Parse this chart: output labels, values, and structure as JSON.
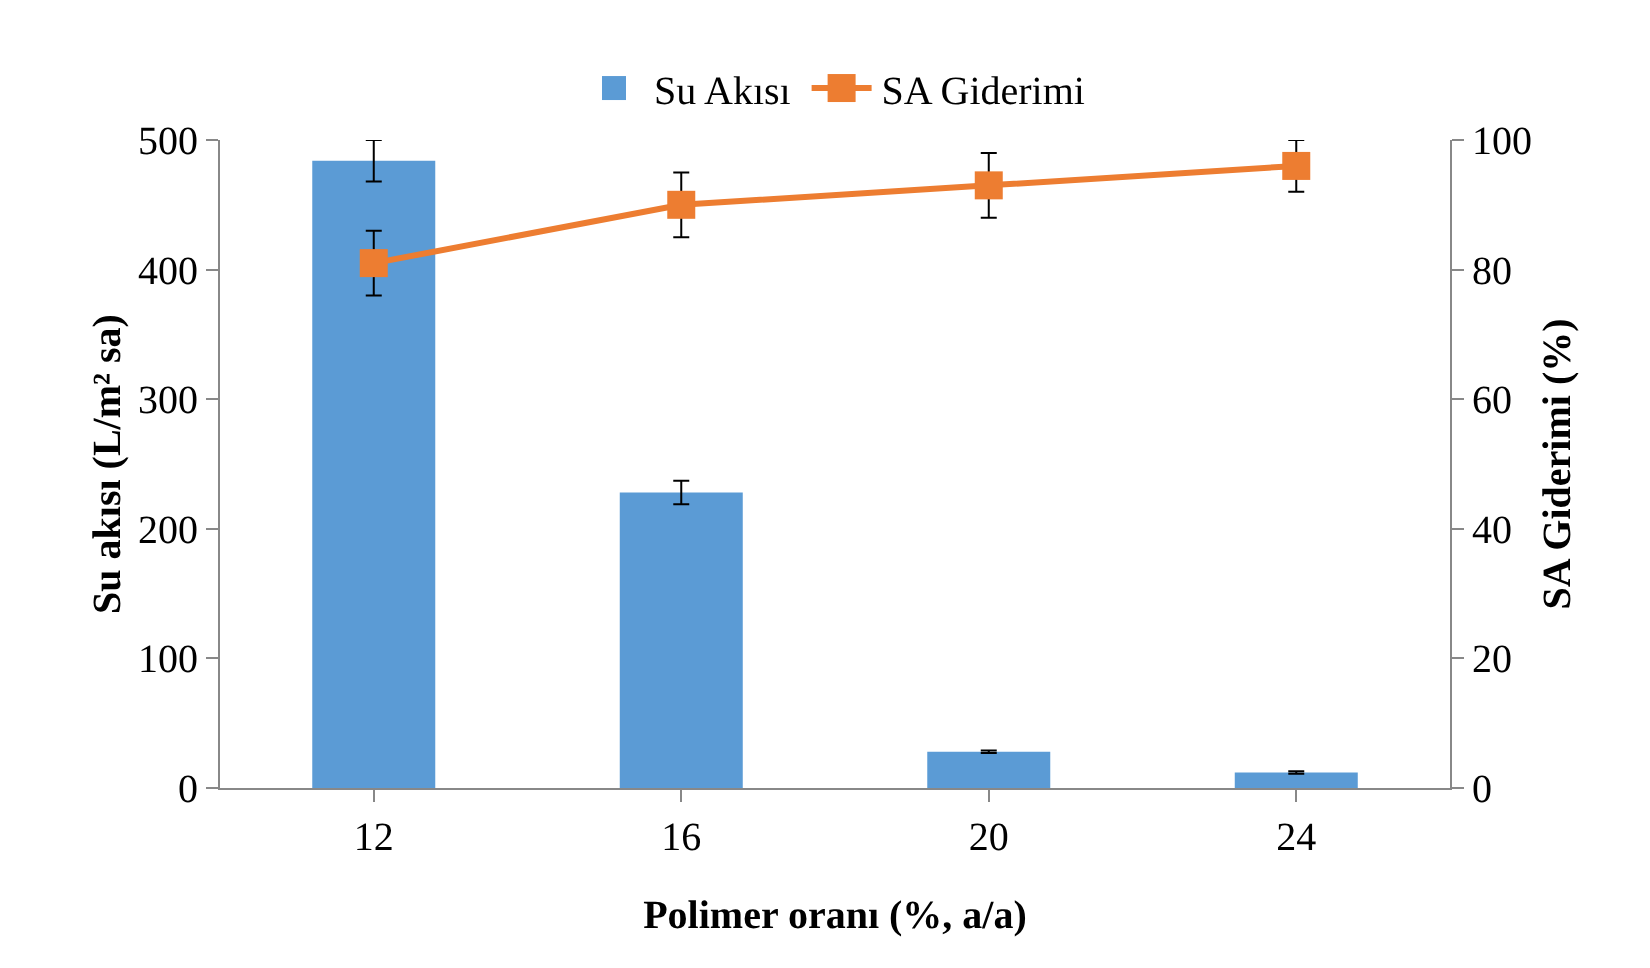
{
  "chart_data": {
    "type": "bar",
    "xlabel": "Polimer oranı (%, a/a)",
    "ylabel": "Su akısı (L/m² sa)",
    "y2label": "SA Giderimi (%)",
    "categories": [
      "12",
      "16",
      "20",
      "24"
    ],
    "series": [
      {
        "name": "Su Akısı",
        "color": "#5b9bd5",
        "values": [
          484,
          228,
          28,
          12
        ],
        "errors": [
          16,
          9,
          1,
          1
        ]
      },
      {
        "name": "SA Giderimi",
        "type": "line",
        "axis": "y2",
        "color": "#ed7d31",
        "marker": "square",
        "values": [
          81,
          90,
          93,
          96
        ],
        "errors": [
          5,
          5,
          5,
          4
        ]
      }
    ],
    "ylim": [
      0,
      500
    ],
    "yticks": [
      0,
      100,
      200,
      300,
      400,
      500
    ],
    "y2lim": [
      0,
      100
    ],
    "y2ticks": [
      0,
      20,
      40,
      60,
      80,
      100
    ],
    "grid": false,
    "legend": "top"
  }
}
